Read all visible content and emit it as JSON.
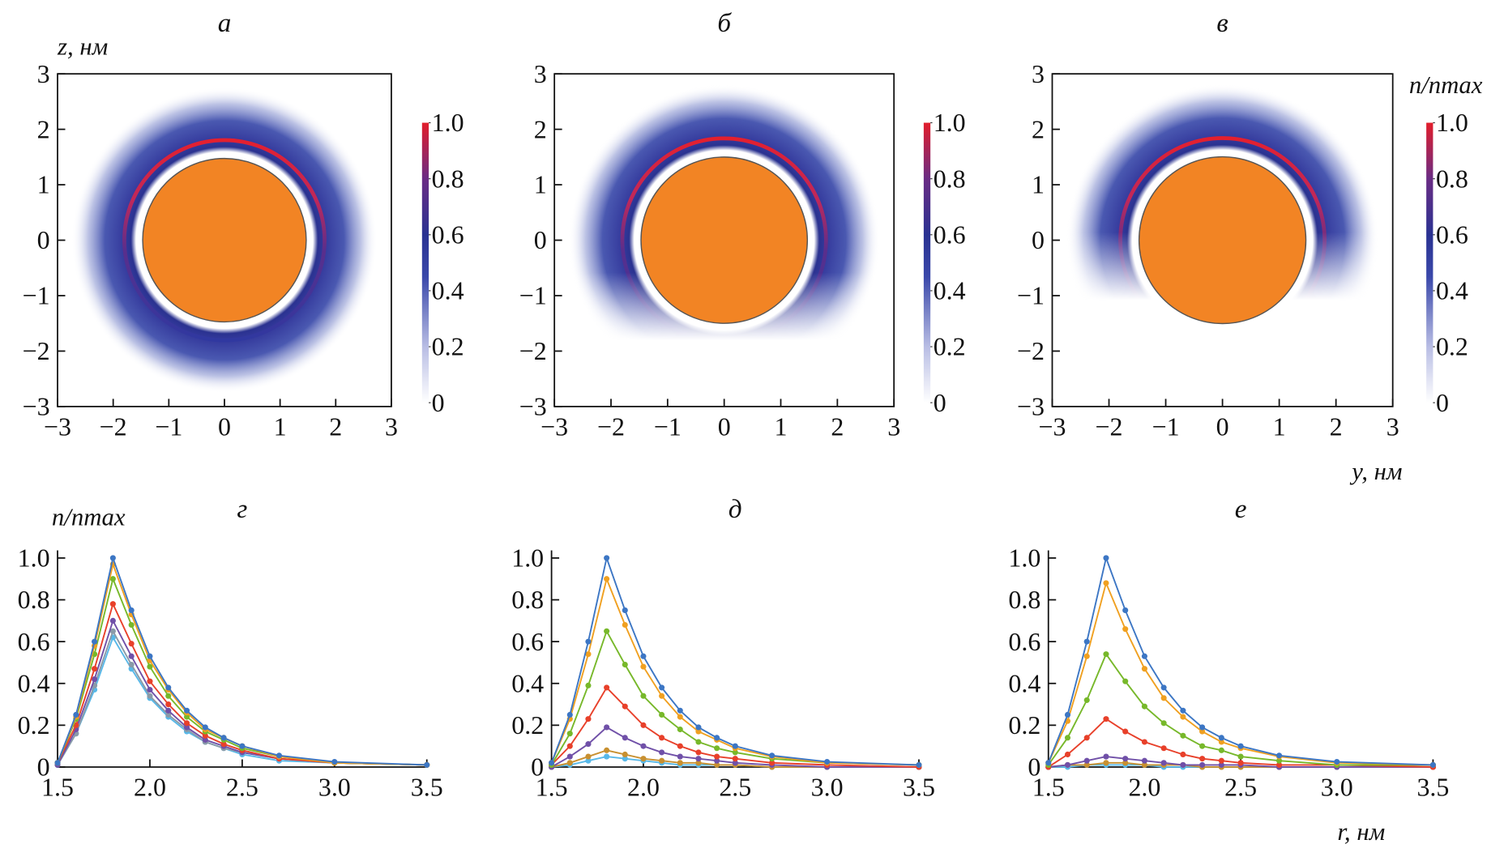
{
  "chart_data": [
    {
      "type": "density_map",
      "title": "а",
      "ylabel": "z, нм",
      "xlim": [
        -3,
        3
      ],
      "ylim": [
        -3,
        3
      ],
      "xticks": [
        {
          "value": -3,
          "label": "−3"
        },
        {
          "value": -2,
          "label": "−2"
        },
        {
          "value": -1,
          "label": "−1"
        },
        0,
        1,
        2,
        3
      ],
      "yticks": [
        {
          "value": -3,
          "label": "−3"
        },
        {
          "value": -2,
          "label": "−2"
        },
        {
          "value": -1,
          "label": "−1"
        },
        0,
        1,
        2,
        3
      ],
      "particle_radius": 1.47,
      "particle_color": "#f28424",
      "peak_radius": 1.8,
      "coverage_deg": 360,
      "colorbar": {
        "lim": [
          0,
          1
        ],
        "ticks": [
          0,
          0.2,
          0.4,
          0.6,
          0.8,
          {
            "value": 1,
            "label": "1.0"
          }
        ]
      }
    },
    {
      "type": "density_map",
      "title": "б",
      "xlim": [
        -3,
        3
      ],
      "ylim": [
        -3,
        3
      ],
      "xticks": [
        {
          "value": -3,
          "label": "−3"
        },
        {
          "value": -2,
          "label": "−2"
        },
        {
          "value": -1,
          "label": "−1"
        },
        0,
        1,
        2,
        3
      ],
      "yticks": [
        {
          "value": -3,
          "label": "−3"
        },
        {
          "value": -2,
          "label": "−2"
        },
        {
          "value": -1,
          "label": "−1"
        },
        0,
        1,
        2,
        3
      ],
      "particle_radius": 1.47,
      "particle_color": "#f28424",
      "peak_radius": 1.8,
      "coverage_deg": 290,
      "colorbar": {
        "lim": [
          0,
          1
        ],
        "ticks": [
          0,
          0.2,
          0.4,
          0.6,
          0.8,
          {
            "value": 1,
            "label": "1.0"
          }
        ]
      }
    },
    {
      "type": "density_map",
      "title": "в",
      "xlabel": "y, нм",
      "xlim": [
        -3,
        3
      ],
      "ylim": [
        -3,
        3
      ],
      "xticks": [
        {
          "value": -3,
          "label": "−3"
        },
        {
          "value": -2,
          "label": "−2"
        },
        {
          "value": -1,
          "label": "−1"
        },
        0,
        1,
        2,
        3
      ],
      "yticks": [
        {
          "value": -3,
          "label": "−3"
        },
        {
          "value": -2,
          "label": "−2"
        },
        {
          "value": -1,
          "label": "−1"
        },
        0,
        1,
        2,
        3
      ],
      "particle_radius": 1.47,
      "particle_color": "#f28424",
      "peak_radius": 1.8,
      "coverage_deg": 230,
      "colorbar": {
        "label": "n/nmax",
        "lim": [
          0,
          1
        ],
        "ticks": [
          0,
          0.2,
          0.4,
          0.6,
          0.8,
          {
            "value": 1,
            "label": "1.0"
          }
        ]
      }
    },
    {
      "type": "line",
      "title": "г",
      "ylabel": "n/nmax",
      "xlim": [
        1.5,
        3.5
      ],
      "ylim": [
        0,
        1
      ],
      "xticks": [
        1.5,
        {
          "value": 2,
          "label": "2.0"
        },
        2.5,
        {
          "value": 3,
          "label": "3.0"
        },
        3.5
      ],
      "yticks": [
        0,
        0.2,
        0.4,
        0.6,
        0.8,
        {
          "value": 1,
          "label": "1.0"
        }
      ],
      "x": [
        1.5,
        1.6,
        1.7,
        1.8,
        1.9,
        2.0,
        2.1,
        2.2,
        2.3,
        2.4,
        2.5,
        2.7,
        3.0,
        3.5
      ],
      "series": [
        {
          "color": "#3c76c4",
          "values": [
            0.02,
            0.25,
            0.6,
            1.0,
            0.75,
            0.53,
            0.38,
            0.27,
            0.19,
            0.14,
            0.1,
            0.055,
            0.025,
            0.01
          ]
        },
        {
          "color": "#f0a020",
          "values": [
            0.02,
            0.24,
            0.58,
            0.97,
            0.73,
            0.51,
            0.37,
            0.26,
            0.18,
            0.14,
            0.1,
            0.05,
            0.02,
            0.01
          ]
        },
        {
          "color": "#77b82a",
          "values": [
            0.02,
            0.23,
            0.54,
            0.9,
            0.68,
            0.48,
            0.34,
            0.24,
            0.17,
            0.13,
            0.09,
            0.05,
            0.02,
            0.01
          ]
        },
        {
          "color": "#e8402a",
          "values": [
            0.02,
            0.2,
            0.47,
            0.78,
            0.59,
            0.41,
            0.3,
            0.21,
            0.15,
            0.11,
            0.08,
            0.04,
            0.02,
            0.01
          ]
        },
        {
          "color": "#7050a8",
          "values": [
            0.01,
            0.18,
            0.42,
            0.7,
            0.53,
            0.37,
            0.27,
            0.19,
            0.13,
            0.1,
            0.07,
            0.04,
            0.02,
            0.01
          ]
        },
        {
          "color": "#8a9aa8",
          "values": [
            0.01,
            0.16,
            0.39,
            0.65,
            0.49,
            0.34,
            0.25,
            0.18,
            0.12,
            0.09,
            0.07,
            0.04,
            0.02,
            0.01
          ]
        },
        {
          "color": "#58b8e8",
          "values": [
            0.01,
            0.16,
            0.37,
            0.62,
            0.47,
            0.33,
            0.24,
            0.17,
            0.12,
            0.09,
            0.06,
            0.03,
            0.02,
            0.01
          ]
        }
      ]
    },
    {
      "type": "line",
      "title": "д",
      "xlim": [
        1.5,
        3.5
      ],
      "ylim": [
        0,
        1
      ],
      "xticks": [
        1.5,
        {
          "value": 2,
          "label": "2.0"
        },
        2.5,
        {
          "value": 3,
          "label": "3.0"
        },
        3.5
      ],
      "yticks": [
        0,
        0.2,
        0.4,
        0.6,
        0.8,
        {
          "value": 1,
          "label": "1.0"
        }
      ],
      "x": [
        1.5,
        1.6,
        1.7,
        1.8,
        1.9,
        2.0,
        2.1,
        2.2,
        2.3,
        2.4,
        2.5,
        2.7,
        3.0,
        3.5
      ],
      "series": [
        {
          "color": "#3c76c4",
          "values": [
            0.02,
            0.25,
            0.6,
            1.0,
            0.75,
            0.53,
            0.38,
            0.27,
            0.19,
            0.14,
            0.1,
            0.055,
            0.025,
            0.01
          ]
        },
        {
          "color": "#f0a020",
          "values": [
            0.02,
            0.23,
            0.54,
            0.9,
            0.68,
            0.48,
            0.34,
            0.24,
            0.17,
            0.13,
            0.09,
            0.05,
            0.02,
            0.01
          ]
        },
        {
          "color": "#77b82a",
          "values": [
            0.01,
            0.16,
            0.39,
            0.65,
            0.49,
            0.34,
            0.25,
            0.18,
            0.12,
            0.09,
            0.07,
            0.04,
            0.02,
            0.01
          ]
        },
        {
          "color": "#e8402a",
          "values": [
            0.01,
            0.1,
            0.23,
            0.38,
            0.29,
            0.2,
            0.14,
            0.1,
            0.07,
            0.05,
            0.04,
            0.02,
            0.01,
            0
          ]
        },
        {
          "color": "#7050a8",
          "values": [
            0,
            0.05,
            0.11,
            0.19,
            0.14,
            0.1,
            0.07,
            0.05,
            0.04,
            0.03,
            0.02,
            0.01,
            0,
            0
          ]
        },
        {
          "color": "#c89030",
          "values": [
            0,
            0.02,
            0.05,
            0.08,
            0.06,
            0.04,
            0.03,
            0.02,
            0.02,
            0.01,
            0.01,
            0,
            0,
            0
          ]
        },
        {
          "color": "#58b8e8",
          "values": [
            0,
            0.01,
            0.03,
            0.05,
            0.04,
            0.03,
            0.02,
            0.01,
            0.01,
            0.01,
            0.01,
            0,
            0,
            0
          ]
        }
      ]
    },
    {
      "type": "line",
      "title": "е",
      "xlabel": "r, нм",
      "xlim": [
        1.5,
        3.5
      ],
      "ylim": [
        0,
        1
      ],
      "xticks": [
        1.5,
        {
          "value": 2,
          "label": "2.0"
        },
        2.5,
        {
          "value": 3,
          "label": "3.0"
        },
        3.5
      ],
      "yticks": [
        0,
        0.2,
        0.4,
        0.6,
        0.8,
        {
          "value": 1,
          "label": "1.0"
        }
      ],
      "x": [
        1.5,
        1.6,
        1.7,
        1.8,
        1.9,
        2.0,
        2.1,
        2.2,
        2.3,
        2.4,
        2.5,
        2.7,
        3.0,
        3.5
      ],
      "series": [
        {
          "color": "#3c76c4",
          "values": [
            0.02,
            0.25,
            0.6,
            1.0,
            0.75,
            0.53,
            0.38,
            0.27,
            0.19,
            0.14,
            0.1,
            0.055,
            0.025,
            0.01
          ]
        },
        {
          "color": "#f0a020",
          "values": [
            0.02,
            0.22,
            0.53,
            0.88,
            0.66,
            0.47,
            0.33,
            0.24,
            0.17,
            0.12,
            0.09,
            0.05,
            0.02,
            0.01
          ]
        },
        {
          "color": "#77b82a",
          "values": [
            0.01,
            0.14,
            0.32,
            0.54,
            0.41,
            0.29,
            0.21,
            0.15,
            0.1,
            0.08,
            0.05,
            0.03,
            0.01,
            0.01
          ]
        },
        {
          "color": "#e8402a",
          "values": [
            0,
            0.06,
            0.14,
            0.23,
            0.17,
            0.12,
            0.09,
            0.06,
            0.04,
            0.03,
            0.02,
            0.01,
            0.01,
            0
          ]
        },
        {
          "color": "#7050a8",
          "values": [
            0,
            0.01,
            0.03,
            0.05,
            0.04,
            0.03,
            0.02,
            0.01,
            0.01,
            0.01,
            0.01,
            0,
            0,
            0
          ]
        },
        {
          "color": "#c89030",
          "values": [
            0,
            0.01,
            0.01,
            0.02,
            0.02,
            0.01,
            0.01,
            0.01,
            0,
            0,
            0,
            0,
            0,
            0
          ]
        },
        {
          "color": "#58b8e8",
          "values": [
            0,
            0,
            0.01,
            0.01,
            0.01,
            0.01,
            0,
            0,
            0,
            0,
            0,
            0,
            0,
            0
          ]
        }
      ]
    }
  ]
}
